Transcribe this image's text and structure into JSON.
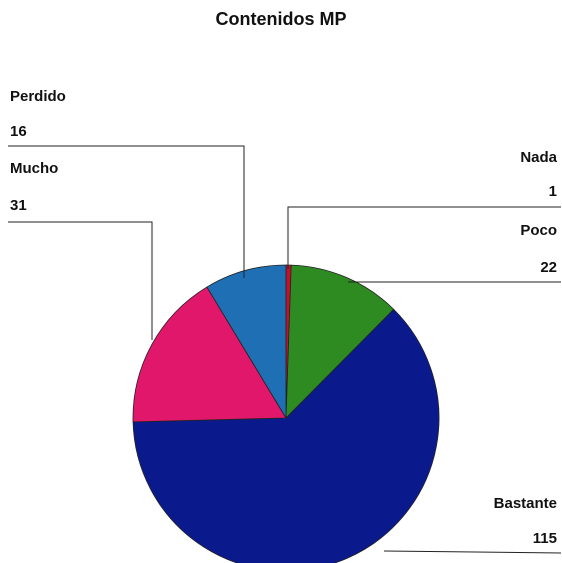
{
  "chart_data": {
    "type": "pie",
    "title": "Contenidos MP",
    "start_category": "Nada",
    "direction": "clockwise",
    "slices": [
      {
        "label": "Nada",
        "value": 1,
        "color": "#c8102e"
      },
      {
        "label": "Poco",
        "value": 22,
        "color": "#2e8b22"
      },
      {
        "label": "Bastante",
        "value": 115,
        "color": "#0a1a8c"
      },
      {
        "label": "Mucho",
        "value": 31,
        "color": "#e0176a"
      },
      {
        "label": "Perdido",
        "value": 16,
        "color": "#1f6fb5"
      }
    ]
  }
}
